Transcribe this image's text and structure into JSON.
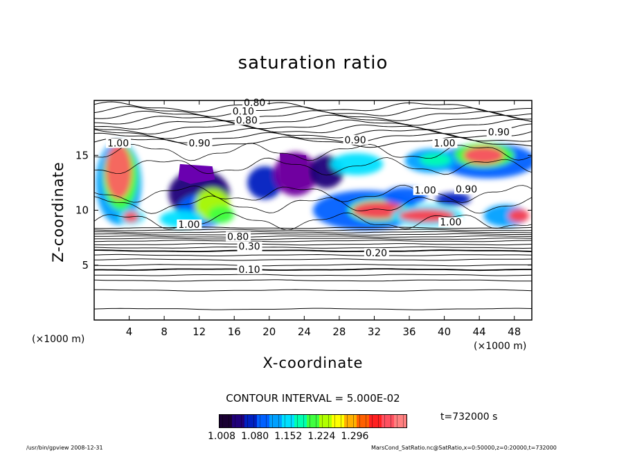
{
  "chart_data": {
    "type": "heatmap",
    "title": "saturation ratio",
    "xlabel": "X-coordinate",
    "ylabel": "Z-coordinate",
    "x_unit_label": "(×1000 m)",
    "xlim": [
      0,
      50
    ],
    "ylim": [
      0,
      20
    ],
    "x_ticks": [
      4,
      8,
      12,
      16,
      20,
      24,
      28,
      32,
      36,
      40,
      44,
      48
    ],
    "y_ticks": [
      5,
      10,
      15
    ],
    "contour_interval_text": "CONTOUR INTERVAL = 5.000E-02",
    "colorbar_ticks": [
      "1.008",
      "1.080",
      "1.152",
      "1.224",
      "1.296"
    ],
    "colorbar_colors": [
      "#1a0033",
      "#20007a",
      "#0020c0",
      "#0060ff",
      "#00a0ff",
      "#00e0ff",
      "#00ffb0",
      "#40ff40",
      "#b0ff00",
      "#ffff00",
      "#ffb000",
      "#ff6000",
      "#ff2020",
      "#ff5060",
      "#ff8080"
    ],
    "contour_labels": [
      {
        "text": "0.80",
        "x": 17.1,
        "y": 19.5
      },
      {
        "text": "0.10",
        "x": 15.8,
        "y": 18.7
      },
      {
        "text": "0.80",
        "x": 16.2,
        "y": 17.9
      },
      {
        "text": "0.90",
        "x": 10.8,
        "y": 15.8
      },
      {
        "text": "1.00",
        "x": 1.5,
        "y": 15.8
      },
      {
        "text": "0.90",
        "x": 28.6,
        "y": 16.1
      },
      {
        "text": "1.00",
        "x": 38.8,
        "y": 15.8
      },
      {
        "text": "0.90",
        "x": 45.0,
        "y": 16.8
      },
      {
        "text": "1.00",
        "x": 36.6,
        "y": 11.5
      },
      {
        "text": "0.90",
        "x": 41.3,
        "y": 11.6
      },
      {
        "text": "1.00",
        "x": 39.5,
        "y": 8.6
      },
      {
        "text": "1.00",
        "x": 9.6,
        "y": 8.4
      },
      {
        "text": "0.80",
        "x": 15.2,
        "y": 7.3
      },
      {
        "text": "0.30",
        "x": 16.5,
        "y": 6.4
      },
      {
        "text": "0.20",
        "x": 31.0,
        "y": 5.8
      },
      {
        "text": "0.10",
        "x": 16.5,
        "y": 4.3
      }
    ],
    "time_label": "t=732000 s",
    "colorbar_label_text": "1.008  1.080  1.152  1.224  1.296"
  },
  "footer": {
    "left": "/usr/bin/gpview   2008-12-31",
    "right": "MarsCond_SatRatio.nc@SatRatio,x=0:50000,z=0:20000,t=732000"
  }
}
